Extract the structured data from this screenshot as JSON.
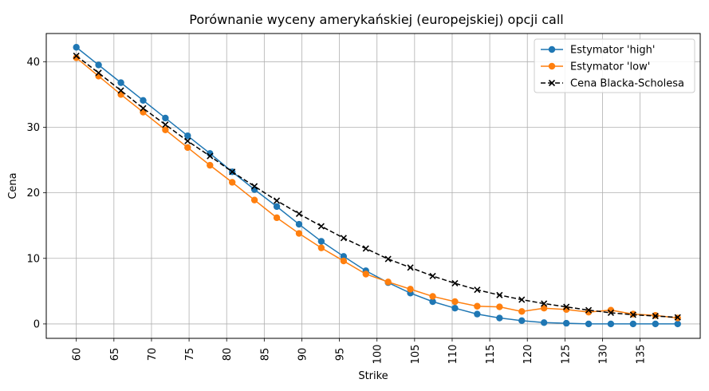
{
  "chart_data": {
    "type": "line",
    "title": "Porównanie wyceny amerykańskiej (europejskiej) opcji call",
    "xlabel": "Strike",
    "ylabel": "Cena",
    "xlim": [
      56,
      143
    ],
    "ylim": [
      -2.2,
      44.3
    ],
    "xticks": [
      60,
      65,
      70,
      75,
      80,
      85,
      90,
      95,
      100,
      105,
      110,
      115,
      120,
      125,
      130,
      135
    ],
    "yticks": [
      0,
      10,
      20,
      30,
      40
    ],
    "grid": true,
    "legend_position": "top-right",
    "x": [
      60,
      62.96,
      65.93,
      68.89,
      71.85,
      74.81,
      77.78,
      80.74,
      83.7,
      86.67,
      89.63,
      92.59,
      95.56,
      98.52,
      101.48,
      104.44,
      107.41,
      110.37,
      113.33,
      116.3,
      119.26,
      122.22,
      125.19,
      128.15,
      131.11,
      134.07,
      137.04,
      140
    ],
    "series": [
      {
        "name": "Estymator 'high'",
        "color": "#1f77b4",
        "marker": "circle",
        "linestyle": "solid",
        "values": [
          42.2,
          39.5,
          36.8,
          34.1,
          31.4,
          28.7,
          26.0,
          23.2,
          20.5,
          17.9,
          15.2,
          12.6,
          10.3,
          8.1,
          6.3,
          4.7,
          3.4,
          2.4,
          1.5,
          0.9,
          0.5,
          0.2,
          0.1,
          0.0,
          0.0,
          0.0,
          0.0,
          0.0
        ]
      },
      {
        "name": "Estymator 'low'",
        "color": "#ff7f0e",
        "marker": "circle",
        "linestyle": "solid",
        "values": [
          40.6,
          37.8,
          35.0,
          32.3,
          29.6,
          26.9,
          24.2,
          21.6,
          18.9,
          16.2,
          13.8,
          11.6,
          9.6,
          7.6,
          6.4,
          5.3,
          4.2,
          3.4,
          2.7,
          2.6,
          1.9,
          2.4,
          2.2,
          1.8,
          2.1,
          1.5,
          1.3,
          0.9
        ]
      },
      {
        "name": "Cena Blacka-Scholesa",
        "color": "#000000",
        "marker": "x",
        "linestyle": "dashed",
        "values": [
          40.9,
          38.3,
          35.6,
          32.9,
          30.4,
          27.9,
          25.6,
          23.2,
          21.0,
          18.8,
          16.8,
          14.9,
          13.1,
          11.5,
          9.9,
          8.6,
          7.3,
          6.2,
          5.2,
          4.4,
          3.7,
          3.1,
          2.6,
          2.1,
          1.7,
          1.4,
          1.2,
          1.0
        ]
      }
    ]
  }
}
